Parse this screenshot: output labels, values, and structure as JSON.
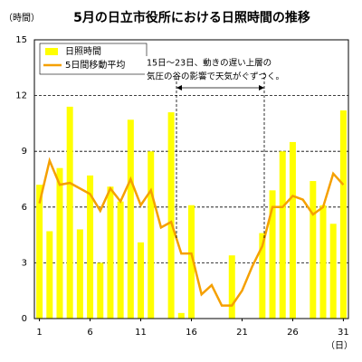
{
  "chart_data": {
    "type": "bar-line",
    "title": "5月の日立市役所における日照時間の推移",
    "y_label": "（時間）",
    "x_label": "（日）",
    "x": [
      1,
      2,
      3,
      4,
      5,
      6,
      7,
      8,
      9,
      10,
      11,
      12,
      13,
      14,
      15,
      16,
      17,
      18,
      19,
      20,
      21,
      22,
      23,
      24,
      25,
      26,
      27,
      28,
      29,
      30,
      31
    ],
    "xlim": [
      0.5,
      31.5
    ],
    "xticks": [
      1,
      6,
      11,
      16,
      21,
      26,
      31
    ],
    "ylim": [
      0,
      15
    ],
    "yticks": [
      0,
      3,
      6,
      9,
      12,
      15
    ],
    "grid": true,
    "legend": "upper left",
    "series": [
      {
        "name": "日照時間",
        "kind": "bar",
        "color": "#ffff00",
        "values": [
          7.2,
          4.7,
          8.1,
          11.4,
          4.8,
          7.7,
          3.0,
          7.1,
          6.3,
          10.7,
          4.1,
          9.0,
          0,
          11.1,
          0.3,
          6.1,
          0,
          0,
          0,
          3.4,
          0,
          0,
          4.6,
          6.9,
          9.0,
          9.5,
          0,
          7.4,
          6.1,
          5.1,
          11.2
        ]
      },
      {
        "name": "5日間移動平均",
        "kind": "line",
        "color": "#f5a000",
        "values": [
          6.2,
          8.5,
          7.2,
          7.3,
          7.0,
          6.7,
          5.8,
          7.0,
          6.3,
          7.5,
          6.1,
          6.9,
          4.9,
          5.2,
          3.5,
          3.5,
          1.3,
          1.8,
          0.7,
          0.7,
          1.5,
          2.8,
          3.9,
          6.0,
          6.0,
          6.6,
          6.4,
          5.6,
          6.0,
          7.8,
          7.2
        ]
      }
    ],
    "annotation": [
      "15日～23日、動きの遅い上層の",
      "気圧の谷の影響で天気がぐずつく。"
    ]
  }
}
